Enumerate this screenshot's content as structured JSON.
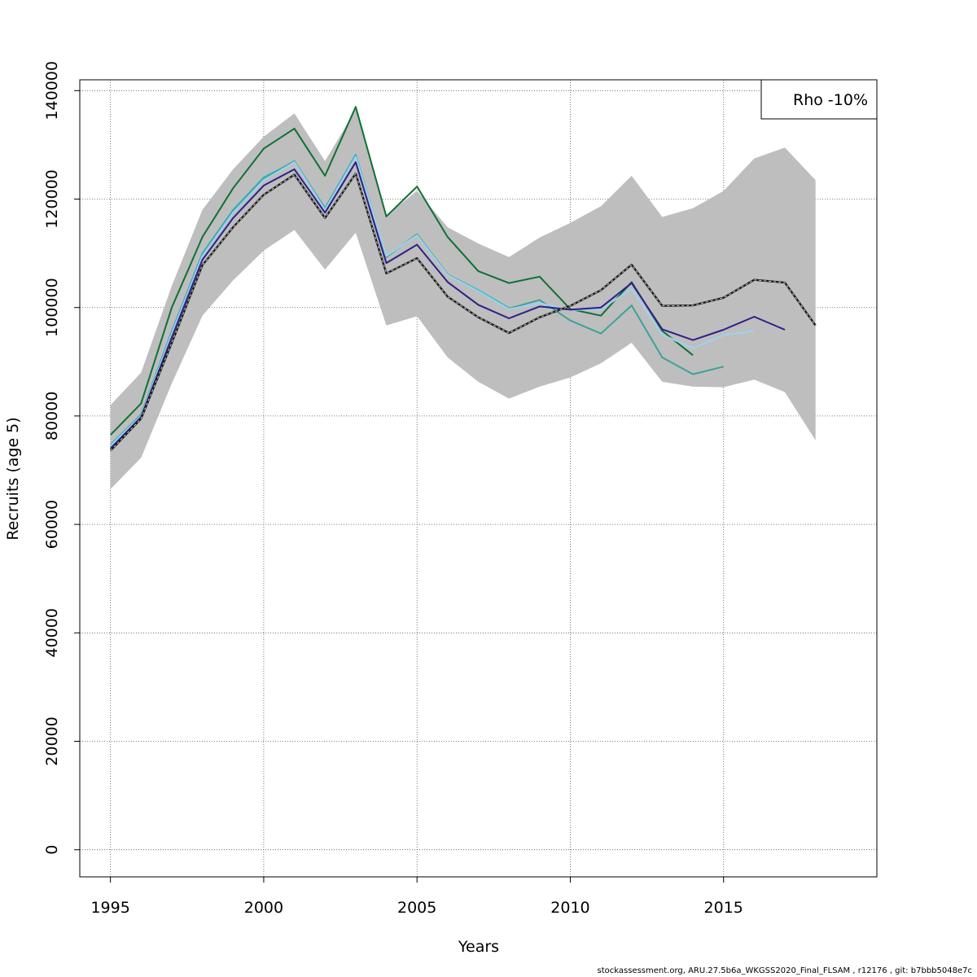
{
  "chart_data": {
    "type": "line",
    "xlabel": "Years",
    "ylabel": "Recruits (age 5)",
    "xlim": [
      1994,
      2020
    ],
    "ylim": [
      -5000,
      142000
    ],
    "xticks": [
      1995,
      2000,
      2005,
      2010,
      2015
    ],
    "yticks": [
      0,
      20000,
      40000,
      60000,
      80000,
      100000,
      120000,
      140000
    ],
    "grid": true,
    "legend": {
      "position": "top-right",
      "text": "Rho -10%"
    },
    "band": {
      "x": [
        1995,
        1996,
        1997,
        1998,
        1999,
        2000,
        2001,
        2002,
        2003,
        2004,
        2005,
        2006,
        2007,
        2008,
        2009,
        2010,
        2011,
        2012,
        2013,
        2014,
        2015,
        2016,
        2017,
        2018
      ],
      "upper": [
        82000,
        88000,
        104000,
        118000,
        125500,
        131500,
        135800,
        127000,
        136500,
        117000,
        121500,
        114800,
        111800,
        109300,
        112900,
        115600,
        118700,
        124300,
        116700,
        118300,
        121500,
        127500,
        129500,
        123500
      ],
      "lower": [
        66500,
        72300,
        86000,
        98500,
        105000,
        110500,
        114300,
        107000,
        113800,
        96700,
        98400,
        90800,
        86300,
        83200,
        85400,
        87100,
        89700,
        93500,
        86300,
        85400,
        85300,
        86700,
        84400,
        75500
      ]
    },
    "series": [
      {
        "color": "#1a1a1a",
        "dashed": true,
        "x": [
          1995,
          1996,
          1997,
          1998,
          1999,
          2000,
          2001,
          2002,
          2003,
          2004,
          2005,
          2006,
          2007,
          2008,
          2009,
          2010,
          2011,
          2012,
          2013,
          2014,
          2015,
          2016,
          2017,
          2018
        ],
        "y": [
          73600,
          79500,
          93500,
          107800,
          114800,
          120800,
          124500,
          116500,
          124700,
          106300,
          109100,
          102000,
          98200,
          95300,
          98200,
          100300,
          103200,
          107900,
          100300,
          100400,
          101800,
          105100,
          104600,
          96700
        ]
      },
      {
        "color": "#2d1f8a",
        "dashed": false,
        "x": [
          1995,
          1996,
          1997,
          1998,
          1999,
          2000,
          2001,
          2002,
          2003,
          2004,
          2005,
          2006,
          2007,
          2008,
          2009,
          2010,
          2011,
          2012,
          2013,
          2014,
          2015,
          2016,
          2017
        ],
        "y": [
          74000,
          79800,
          94500,
          108800,
          116500,
          122500,
          125500,
          117500,
          126800,
          108200,
          111600,
          104700,
          100500,
          98000,
          100200,
          99600,
          100000,
          104500,
          96000,
          94000,
          95900,
          98300,
          95900
        ]
      },
      {
        "color": "#9ed2ee",
        "dashed": false,
        "x": [
          1995,
          1996,
          1997,
          1998,
          1999,
          2000,
          2001,
          2002,
          2003,
          2004,
          2005,
          2006,
          2007,
          2008,
          2009,
          2010,
          2011,
          2012,
          2013,
          2014,
          2015,
          2016
        ],
        "y": [
          74500,
          80000,
          95200,
          109500,
          117500,
          123500,
          126800,
          118000,
          127800,
          109500,
          113300,
          106000,
          103000,
          99700,
          100800,
          99500,
          99700,
          103400,
          95000,
          92500,
          94900,
          95700
        ]
      },
      {
        "color": "#3aa39a",
        "dashed": false,
        "x": [
          1995,
          1996,
          1997,
          1998,
          1999,
          2000,
          2001,
          2002,
          2003,
          2004,
          2005,
          2006,
          2007,
          2008,
          2009,
          2010,
          2011,
          2012,
          2013,
          2014,
          2015
        ],
        "y": [
          74700,
          80200,
          95500,
          109800,
          117800,
          123800,
          127000,
          118300,
          128000,
          109300,
          113500,
          106100,
          103000,
          99800,
          101400,
          97600,
          95200,
          100400,
          90800,
          87700,
          89100
        ]
      },
      {
        "color": "#0e7035",
        "dashed": false,
        "x": [
          1995,
          1996,
          1997,
          1998,
          1999,
          2000,
          2001,
          2002,
          2003,
          2004,
          2005,
          2006,
          2007,
          2008,
          2009,
          2010,
          2011,
          2012,
          2013,
          2014
        ],
        "y": [
          76500,
          82300,
          100000,
          113000,
          122000,
          129300,
          133000,
          124300,
          137000,
          116800,
          122300,
          113000,
          106700,
          104500,
          105700,
          99700,
          98500,
          104700,
          95700,
          91200
        ]
      },
      {
        "color": "#3ab8c4",
        "dashed": false,
        "x": [
          1995,
          1996,
          1997,
          1998,
          1999,
          2000,
          2001,
          2002,
          2003,
          2004,
          2005,
          2006,
          2007,
          2008
        ],
        "y": [
          74400,
          80300,
          95600,
          110000,
          118000,
          124000,
          126900,
          118300,
          128200,
          109300,
          113500,
          106100,
          103200,
          99900
        ]
      }
    ]
  },
  "footer": "stockassessment.org, ARU.27.5b6a_WKGSS2020_Final_FLSAM , r12176 , git: b7bbb5048e7c"
}
